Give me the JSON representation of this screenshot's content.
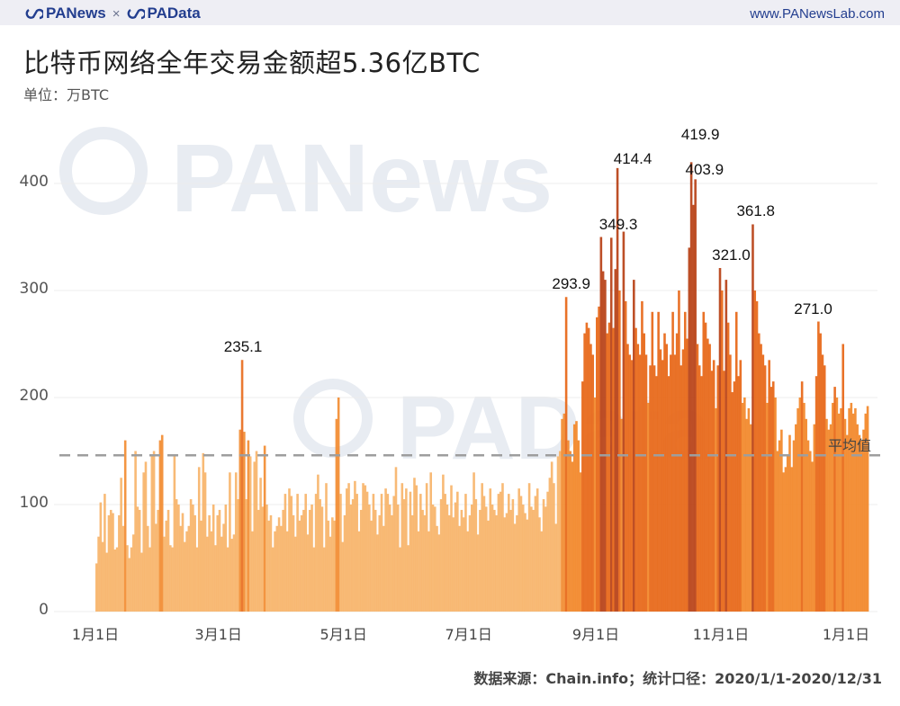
{
  "header": {
    "brand_left": "PANews",
    "separator": "×",
    "brand_right": "PAData",
    "website": "www.PANewsLab.com",
    "logo_icon": "panews-loop-logo-icon"
  },
  "title": "比特币网络全年交易金额超5.36亿BTC",
  "unit": "单位：万BTC",
  "source": "数据来源：Chain.info；统计口径：2020/1/1-2020/12/31",
  "watermarks": [
    "PANews",
    "PAData"
  ],
  "colors": {
    "bar_low": "#f7b267",
    "bar_mid": "#f28a2e",
    "bar_high": "#e86a1c",
    "bar_peak": "#b9461b",
    "avg_line": "#9e9e9e",
    "grid": "#ececec",
    "brand": "#233e8f",
    "watermark": "#e8ecf2"
  },
  "chart_data": {
    "type": "bar",
    "title": "比特币网络全年交易金额超5.36亿BTC",
    "ylabel": "万BTC",
    "xlabel": "",
    "ylim": [
      0,
      440
    ],
    "yticks": [
      0,
      100,
      200,
      300,
      400
    ],
    "xticks": [
      "1月1日",
      "3月1日",
      "5月1日",
      "7月1日",
      "9月1日",
      "11月1日",
      "1月1日"
    ],
    "xtick_day_index": [
      0,
      60,
      121,
      182,
      244,
      305,
      366
    ],
    "grid": true,
    "average": {
      "value": 146,
      "label": "平均值"
    },
    "start_date": "2020-01-01",
    "end_date": "2020-12-31",
    "annotations": [
      {
        "day": 72,
        "value": 235.1,
        "label": "235.1"
      },
      {
        "day": 232,
        "value": 293.9,
        "label": "293.9"
      },
      {
        "day": 255,
        "value": 349.3,
        "label": "349.3"
      },
      {
        "day": 262,
        "value": 414.4,
        "label": "414.4"
      },
      {
        "day": 295,
        "value": 419.9,
        "label": "419.9"
      },
      {
        "day": 297,
        "value": 403.9,
        "label": "403.9"
      },
      {
        "day": 310,
        "value": 321.0,
        "label": "321.0"
      },
      {
        "day": 322,
        "value": 361.8,
        "label": "361.8"
      },
      {
        "day": 350,
        "value": 271.0,
        "label": "271.0"
      }
    ],
    "values": [
      45,
      70,
      102,
      65,
      110,
      55,
      90,
      95,
      92,
      58,
      60,
      90,
      125,
      80,
      160,
      62,
      50,
      60,
      72,
      150,
      98,
      95,
      55,
      130,
      140,
      80,
      60,
      145,
      150,
      82,
      95,
      160,
      165,
      70,
      85,
      95,
      62,
      60,
      145,
      105,
      100,
      80,
      92,
      65,
      75,
      80,
      105,
      100,
      90,
      60,
      135,
      85,
      148,
      130,
      70,
      90,
      75,
      100,
      62,
      90,
      95,
      70,
      82,
      100,
      60,
      130,
      68,
      72,
      130,
      105,
      170,
      235.1,
      168,
      105,
      160,
      145,
      75,
      140,
      150,
      95,
      125,
      98,
      155,
      100,
      85,
      90,
      60,
      75,
      80,
      88,
      80,
      95,
      110,
      75,
      115,
      108,
      90,
      70,
      110,
      85,
      90,
      95,
      110,
      72,
      95,
      100,
      60,
      110,
      128,
      105,
      98,
      60,
      120,
      85,
      70,
      88,
      85,
      180,
      200,
      110,
      65,
      90,
      115,
      120,
      100,
      105,
      122,
      110,
      75,
      95,
      120,
      118,
      112,
      100,
      85,
      110,
      95,
      72,
      90,
      110,
      80,
      115,
      110,
      100,
      90,
      108,
      135,
      100,
      60,
      120,
      105,
      115,
      62,
      112,
      90,
      125,
      118,
      75,
      110,
      95,
      90,
      120,
      75,
      130,
      100,
      98,
      80,
      72,
      105,
      128,
      110,
      100,
      90,
      118,
      88,
      102,
      112,
      80,
      95,
      88,
      110,
      75,
      90,
      100,
      130,
      105,
      72,
      95,
      120,
      108,
      98,
      85,
      115,
      100,
      95,
      90,
      110,
      112,
      120,
      88,
      92,
      110,
      95,
      105,
      82,
      90,
      115,
      108,
      100,
      92,
      86,
      120,
      98,
      95,
      108,
      115,
      88,
      75,
      105,
      98,
      112,
      125,
      140,
      120,
      82,
      145,
      150,
      180,
      185,
      293.9,
      160,
      150,
      140,
      175,
      178,
      160,
      130,
      215,
      260,
      270,
      265,
      250,
      240,
      200,
      275,
      285,
      350,
      318,
      310,
      260,
      270,
      349.3,
      265,
      320,
      414.4,
      300,
      180,
      355,
      290,
      250,
      240,
      235,
      310,
      265,
      250,
      240,
      290,
      260,
      240,
      195,
      230,
      280,
      230,
      220,
      280,
      245,
      235,
      260,
      250,
      220,
      240,
      280,
      240,
      260,
      300,
      230,
      245,
      280,
      255,
      340,
      419.9,
      380,
      403.9,
      250,
      230,
      220,
      280,
      270,
      255,
      250,
      225,
      235,
      190,
      230,
      321.0,
      300,
      225,
      310,
      270,
      240,
      205,
      215,
      280,
      220,
      235,
      195,
      200,
      180,
      190,
      175,
      361.8,
      300,
      290,
      260,
      250,
      240,
      230,
      195,
      235,
      210,
      215,
      200,
      150,
      160,
      170,
      130,
      135,
      145,
      165,
      135,
      160,
      175,
      190,
      200,
      215,
      195,
      180,
      160,
      150,
      140,
      175,
      220,
      271.0,
      260,
      240,
      230,
      180,
      170,
      175,
      195,
      210,
      200,
      185,
      190,
      250,
      180,
      165,
      190,
      195,
      185,
      190,
      175,
      165,
      160,
      170,
      185,
      192
    ]
  }
}
